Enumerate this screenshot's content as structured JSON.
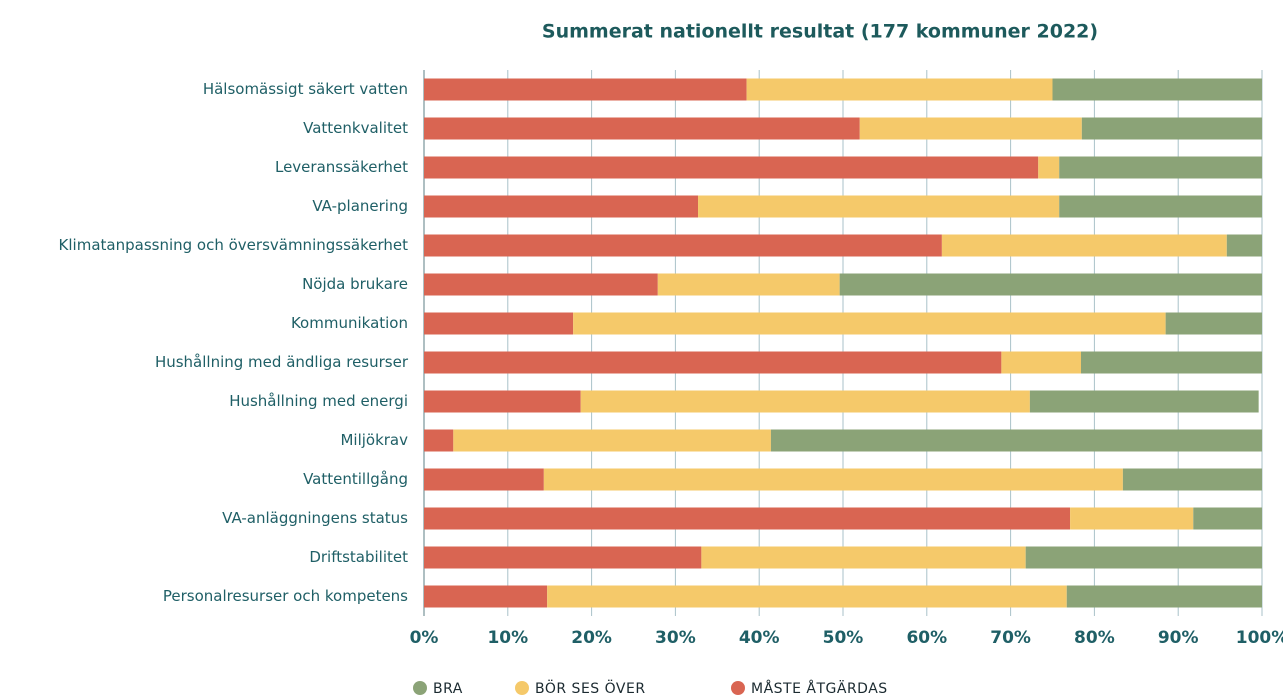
{
  "chart_data": {
    "type": "stacked_bar_horizontal",
    "title": "Summerat nationellt resultat (177 kommuner 2022)",
    "categories": [
      "Hälsomässigt säkert vatten",
      "Vattenkvalitet",
      "Leveranssäkerhet",
      "VA-planering",
      "Klimatanpassning och översvämningssäkerhet",
      "Nöjda brukare",
      "Kommunikation",
      "Hushållning med ändliga resurser",
      "Hushållning med energi",
      "Miljökrav",
      "Vattentillgång",
      "VA-anläggningens status",
      "Driftstabilitet",
      "Personalresurser och kompetens"
    ],
    "series": [
      {
        "name": "BRA",
        "color": "#8ba377",
        "values": [
          25,
          21.5,
          24.2,
          24.2,
          4.2,
          50.4,
          11.5,
          21.6,
          27.3,
          58.6,
          16.6,
          8.2,
          28.2,
          23.3
        ]
      },
      {
        "name": "BÖR SES ÖVER",
        "color": "#f5c96a",
        "values": [
          36.5,
          26.5,
          2.5,
          43.1,
          34,
          21.7,
          70.7,
          9.5,
          53.6,
          37.9,
          69.1,
          14.7,
          38.7,
          62
        ]
      },
      {
        "name": "MÅSTE ÅTGÄRDAS",
        "color": "#d96552",
        "values": [
          38.5,
          52,
          73.3,
          32.7,
          61.8,
          27.9,
          17.8,
          68.9,
          18.7,
          3.5,
          14.3,
          77.1,
          33.1,
          14.7
        ]
      }
    ],
    "xlim": [
      0,
      100
    ],
    "xticks": [
      {
        "value": 0,
        "label": "0%"
      },
      {
        "value": 10,
        "label": "10%"
      },
      {
        "value": 20,
        "label": "20%"
      },
      {
        "value": 30,
        "label": "30%"
      },
      {
        "value": 40,
        "label": "40%"
      },
      {
        "value": 50,
        "label": "50%"
      },
      {
        "value": 60,
        "label": "60%"
      },
      {
        "value": 70,
        "label": "70%"
      },
      {
        "value": 80,
        "label": "80%"
      },
      {
        "value": 90,
        "label": "90%"
      },
      {
        "value": 100,
        "label": "100%"
      }
    ],
    "grid": true,
    "legend": "bottom"
  }
}
